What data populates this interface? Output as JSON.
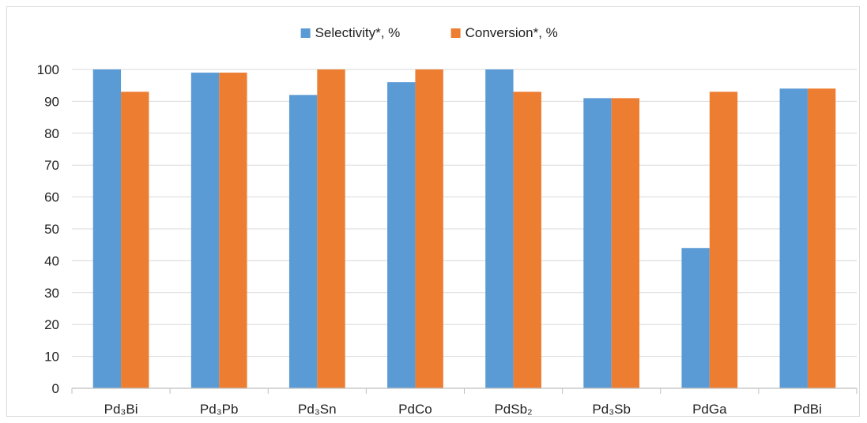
{
  "chart_data": {
    "type": "bar",
    "title": "",
    "xlabel": "",
    "ylabel": "",
    "categories": [
      "Pd₃Bi",
      "Pd₃Pb",
      "Pd₃Sn",
      "PdCo",
      "PdSb₂",
      "Pd₃Sb",
      "PdGa",
      "PdBi"
    ],
    "series": [
      {
        "name": "Selectivity*, %",
        "color": "#5b9bd5",
        "values": [
          100,
          99,
          92,
          96,
          100,
          91,
          44,
          94
        ]
      },
      {
        "name": "Conversion*, %",
        "color": "#ed7d31",
        "values": [
          93,
          99,
          100,
          100,
          93,
          91,
          93,
          94
        ]
      }
    ],
    "ylim": [
      0,
      100
    ],
    "yticks": [
      0,
      10,
      20,
      30,
      40,
      50,
      60,
      70,
      80,
      90,
      100
    ],
    "grid": true,
    "legend_position": "top-center"
  }
}
